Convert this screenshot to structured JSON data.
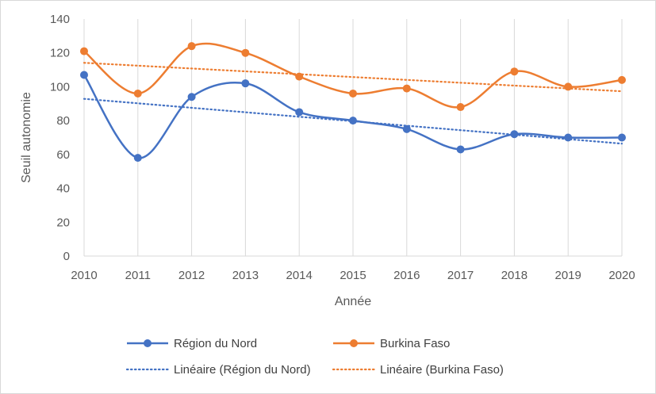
{
  "chart_data": {
    "type": "line",
    "xlabel": "Année",
    "ylabel": "Seuil autonomie",
    "ylim": [
      0,
      140
    ],
    "y_ticks": [
      "0",
      "20",
      "40",
      "60",
      "80",
      "100",
      "120",
      "140"
    ],
    "categories": [
      "2010",
      "2011",
      "2012",
      "2013",
      "2014",
      "2015",
      "2016",
      "2017",
      "2018",
      "2019",
      "2020"
    ],
    "grid": "vertical",
    "smooth": true,
    "legend_position": "bottom",
    "series": [
      {
        "name": "Région du Nord",
        "color": "#4472c4",
        "marker": "circle",
        "values": [
          107,
          58,
          94,
          102,
          85,
          80,
          75,
          63,
          72,
          70,
          70
        ]
      },
      {
        "name": "Burkina Faso",
        "color": "#ed7d31",
        "marker": "circle",
        "values": [
          121,
          96,
          124,
          120,
          106,
          96,
          99,
          88,
          109,
          100,
          104
        ]
      }
    ],
    "trendlines": [
      {
        "name": "Linéaire (Région du Nord)",
        "color": "#4472c4",
        "style": "dotted",
        "of_series": 0
      },
      {
        "name": "Linéaire (Burkina Faso)",
        "color": "#ed7d31",
        "style": "dotted",
        "of_series": 1
      }
    ]
  }
}
